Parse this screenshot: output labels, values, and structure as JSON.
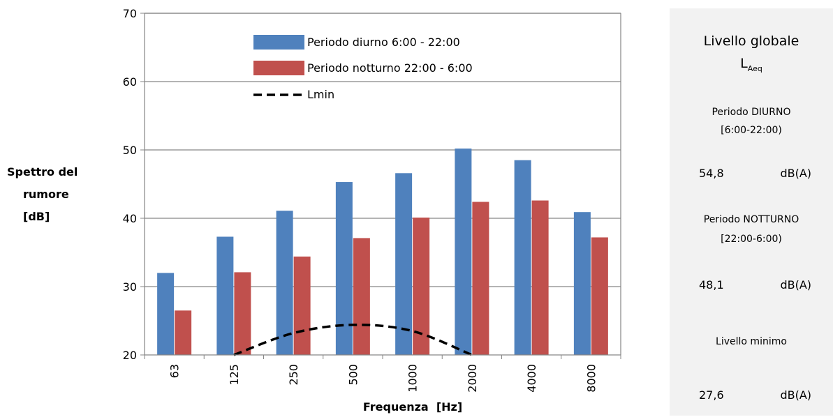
{
  "chart_data": {
    "type": "bar",
    "categories": [
      "63",
      "125",
      "250",
      "500",
      "1000",
      "2000",
      "4000",
      "8000"
    ],
    "series": [
      {
        "name": "Periodo diurno 6:00 - 22:00",
        "color": "#4f81bd",
        "values": [
          32.0,
          37.3,
          41.1,
          45.3,
          46.6,
          50.2,
          48.5,
          40.9
        ]
      },
      {
        "name": "Periodo notturno 22:00 - 6:00",
        "color": "#c0504d",
        "values": [
          26.5,
          32.1,
          34.4,
          37.1,
          40.1,
          42.4,
          42.6,
          37.2
        ]
      }
    ],
    "line_series": {
      "name": "Lmin",
      "style": "dashed",
      "color": "#000000",
      "x": [
        125,
        250,
        500,
        1000,
        2000
      ],
      "values": [
        20.0,
        23.2,
        24.4,
        23.5,
        20.0
      ]
    },
    "xlabel": "Frequenza  [Hz]",
    "ylabel_lines": [
      "Spettro del",
      "rumore",
      "[dB]"
    ],
    "ylim": [
      20,
      70
    ],
    "yticks": [
      20,
      30,
      40,
      50,
      60,
      70
    ],
    "grid": true,
    "legend_position": "top-center"
  },
  "panel": {
    "title": "Livello globale",
    "laeq_main": "L",
    "laeq_sub": "Aeq",
    "day_label": "Periodo DIURNO",
    "day_range": "[6:00-22:00)",
    "day_value": "54,8",
    "day_unit": "dB(A)",
    "night_label": "Periodo NOTTURNO",
    "night_range": "[22:00-6:00)",
    "night_value": "48,1",
    "night_unit": "dB(A)",
    "min_label": "Livello minimo",
    "min_value": "27,6",
    "min_unit": "dB(A)"
  }
}
